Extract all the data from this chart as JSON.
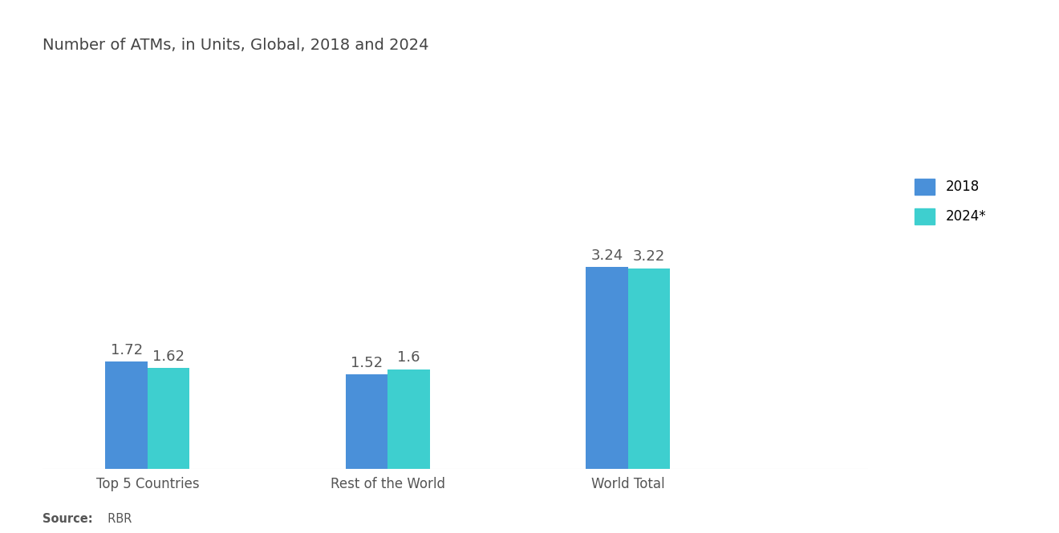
{
  "title": "Number of ATMs, in Units, Global, 2018 and 2024",
  "categories": [
    "Top 5 Countries",
    "Rest of the World",
    "World Total"
  ],
  "series": {
    "2018": [
      1.72,
      1.52,
      3.24
    ],
    "2024*": [
      1.62,
      1.6,
      3.22
    ]
  },
  "bar_colors": {
    "2018": "#4A90D9",
    "2024*": "#3ECFCF"
  },
  "ylim": [
    0,
    6.5
  ],
  "bar_width": 0.28,
  "x_positions": [
    1.0,
    2.6,
    4.2
  ],
  "xlim": [
    0.3,
    5.8
  ],
  "value_fontsize": 13,
  "label_fontsize": 12,
  "title_fontsize": 14,
  "source_label_bold": "Source:",
  "source_label_rest": "  RBR",
  "background_color": "#FFFFFF"
}
